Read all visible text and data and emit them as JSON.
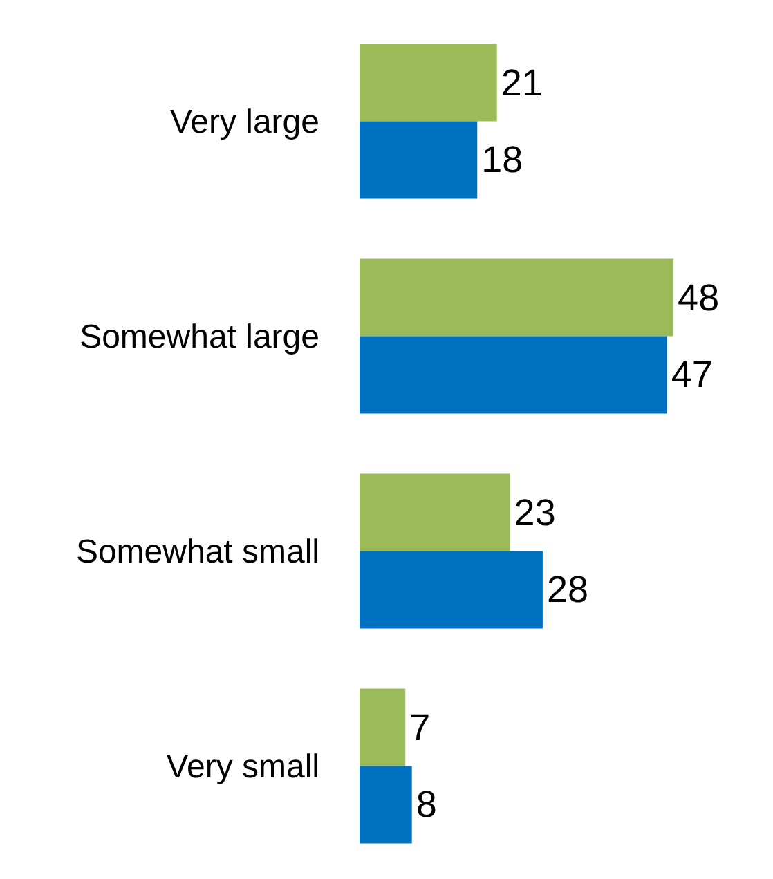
{
  "chart_data": {
    "type": "bar",
    "orientation": "horizontal",
    "categories": [
      "Very large",
      "Somewhat large",
      "Somewhat small",
      "Very small"
    ],
    "series": [
      {
        "color": "#9bbb59",
        "values": [
          21,
          48,
          23,
          7
        ]
      },
      {
        "color": "#0070c0",
        "values": [
          18,
          47,
          28,
          8
        ]
      }
    ],
    "data_labels": true,
    "grid": false,
    "tick_labels": "y"
  }
}
